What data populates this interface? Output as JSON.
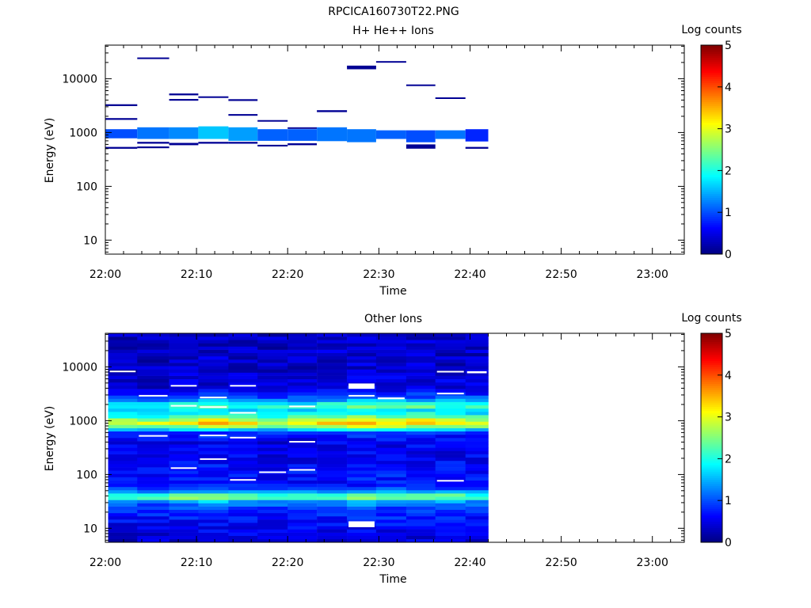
{
  "figure_title": "RPCICA160730T22.PNG",
  "chart_data": [
    {
      "type": "heatmap",
      "title": "H+ He++ Ions",
      "xlabel": "Time",
      "ylabel": "Energy (eV)",
      "colorbar_label": "Log counts",
      "x_tick_labels": [
        "22:00",
        "22:10",
        "22:20",
        "22:30",
        "22:40",
        "22:50",
        "23:00"
      ],
      "y_tick_labels": [
        "10",
        "100",
        "1000",
        "10000"
      ],
      "colorbar_tick_labels": [
        "0",
        "1",
        "2",
        "3",
        "4",
        "5"
      ],
      "xlim_minutes": [
        0,
        63.5
      ],
      "ylim_eV": [
        5.5,
        42000
      ],
      "y_scale": "log",
      "colorbar_range": [
        0,
        5
      ],
      "data_end_minutes": 42,
      "columns_minutes": [
        0,
        3.5,
        7,
        10.2,
        13.5,
        16.7,
        20,
        23.2,
        26.5,
        29.7,
        33,
        36.2,
        39.5,
        42
      ],
      "cells": [
        {
          "col": 0,
          "e0": 780,
          "e1": 1150,
          "z": 1.0
        },
        {
          "col": 0,
          "e0": 3100,
          "e1": 3350,
          "z": 0.1
        },
        {
          "col": 0,
          "e0": 1720,
          "e1": 1850,
          "z": 0.1
        },
        {
          "col": 0,
          "e0": 500,
          "e1": 540,
          "z": 0.1
        },
        {
          "col": 1,
          "e0": 760,
          "e1": 1250,
          "z": 1.2
        },
        {
          "col": 1,
          "e0": 23500,
          "e1": 24800,
          "z": 0.1
        },
        {
          "col": 1,
          "e0": 620,
          "e1": 670,
          "z": 0.1
        },
        {
          "col": 1,
          "e0": 510,
          "e1": 550,
          "z": 0.1
        },
        {
          "col": 2,
          "e0": 760,
          "e1": 1250,
          "z": 1.3
        },
        {
          "col": 2,
          "e0": 4900,
          "e1": 5300,
          "z": 0.1
        },
        {
          "col": 2,
          "e0": 3900,
          "e1": 4200,
          "z": 0.1
        },
        {
          "col": 2,
          "e0": 580,
          "e1": 640,
          "z": 0.1
        },
        {
          "col": 3,
          "e0": 760,
          "e1": 1300,
          "z": 1.6
        },
        {
          "col": 3,
          "e0": 4450,
          "e1": 4700,
          "z": 0.1
        },
        {
          "col": 3,
          "e0": 620,
          "e1": 670,
          "z": 0.1
        },
        {
          "col": 4,
          "e0": 700,
          "e1": 1250,
          "z": 1.4
        },
        {
          "col": 4,
          "e0": 3850,
          "e1": 4150,
          "z": 0.1
        },
        {
          "col": 4,
          "e0": 2050,
          "e1": 2200,
          "z": 0.1
        },
        {
          "col": 4,
          "e0": 620,
          "e1": 670,
          "z": 0.1
        },
        {
          "col": 5,
          "e0": 700,
          "e1": 1150,
          "z": 1.1
        },
        {
          "col": 5,
          "e0": 1600,
          "e1": 1700,
          "z": 0.1
        },
        {
          "col": 5,
          "e0": 550,
          "e1": 590,
          "z": 0.1
        },
        {
          "col": 6,
          "e0": 700,
          "e1": 1150,
          "z": 1.1
        },
        {
          "col": 6,
          "e0": 1180,
          "e1": 1250,
          "z": 0.1
        },
        {
          "col": 6,
          "e0": 580,
          "e1": 630,
          "z": 0.1
        },
        {
          "col": 7,
          "e0": 690,
          "e1": 1250,
          "z": 1.2
        },
        {
          "col": 7,
          "e0": 2400,
          "e1": 2600,
          "z": 0.1
        },
        {
          "col": 8,
          "e0": 660,
          "e1": 1150,
          "z": 1.2
        },
        {
          "col": 8,
          "e0": 15000,
          "e1": 17500,
          "z": 0.1
        },
        {
          "col": 9,
          "e0": 760,
          "e1": 1100,
          "z": 1.1
        },
        {
          "col": 9,
          "e0": 19800,
          "e1": 21200,
          "z": 0.1
        },
        {
          "col": 10,
          "e0": 660,
          "e1": 1100,
          "z": 1.0
        },
        {
          "col": 10,
          "e0": 7300,
          "e1": 7800,
          "z": 0.1
        },
        {
          "col": 10,
          "e0": 500,
          "e1": 600,
          "z": 0.1
        },
        {
          "col": 11,
          "e0": 760,
          "e1": 1100,
          "z": 1.2
        },
        {
          "col": 11,
          "e0": 4200,
          "e1": 4500,
          "z": 0.1
        },
        {
          "col": 12,
          "e0": 680,
          "e1": 1150,
          "z": 0.8
        },
        {
          "col": 12,
          "e0": 500,
          "e1": 540,
          "z": 0.1
        }
      ]
    },
    {
      "type": "heatmap",
      "title": "Other Ions",
      "xlabel": "Time",
      "ylabel": "Energy (eV)",
      "colorbar_label": "Log counts",
      "x_tick_labels": [
        "22:00",
        "22:10",
        "22:20",
        "22:30",
        "22:40",
        "22:50",
        "23:00"
      ],
      "y_tick_labels": [
        "10",
        "100",
        "1000",
        "10000"
      ],
      "colorbar_tick_labels": [
        "0",
        "1",
        "2",
        "3",
        "4",
        "5"
      ],
      "xlim_minutes": [
        0,
        63.5
      ],
      "ylim_eV": [
        5.5,
        42000
      ],
      "y_scale": "log",
      "colorbar_range": [
        0,
        5
      ],
      "data_start_minutes": 0.3,
      "data_end_minutes": 42,
      "columns_minutes": [
        0.3,
        3.5,
        7,
        10.2,
        13.5,
        16.7,
        20,
        23.2,
        26.5,
        29.7,
        33,
        36.2,
        39.5,
        42
      ],
      "n_energy_bins": 64,
      "profile_log_eV_to_z": [
        [
          0.74,
          0.4
        ],
        [
          1.1,
          0.6
        ],
        [
          1.4,
          0.9
        ],
        [
          1.5,
          1.4
        ],
        [
          1.56,
          2.3
        ],
        [
          1.62,
          2.1
        ],
        [
          1.7,
          1.2
        ],
        [
          1.78,
          0.6
        ],
        [
          2.0,
          0.7
        ],
        [
          2.3,
          0.55
        ],
        [
          2.6,
          0.5
        ],
        [
          2.78,
          0.8
        ],
        [
          2.88,
          2.3
        ],
        [
          2.95,
          3.1
        ],
        [
          3.02,
          2.7
        ],
        [
          3.1,
          1.9
        ],
        [
          3.2,
          1.6
        ],
        [
          3.28,
          2.2
        ],
        [
          3.35,
          1.5
        ],
        [
          3.45,
          0.9
        ],
        [
          3.6,
          0.45
        ],
        [
          4.0,
          0.35
        ],
        [
          4.63,
          0.35
        ]
      ],
      "column_gain": [
        0.95,
        0.95,
        1.05,
        1.1,
        1.05,
        0.95,
        1.0,
        1.05,
        1.15,
        1.1,
        1.1,
        1.05,
        1.0
      ],
      "empty_bins": [
        {
          "col": 1,
          "e0": 2800,
          "e1": 3000
        },
        {
          "col": 2,
          "e0": 1850,
          "e1": 1950
        },
        {
          "col": 3,
          "e0": 2600,
          "e1": 2800
        },
        {
          "col": 3,
          "e0": 1750,
          "e1": 1850
        },
        {
          "col": 4,
          "e0": 1350,
          "e1": 1450
        },
        {
          "col": 4,
          "e0": 4300,
          "e1": 4600
        },
        {
          "col": 2,
          "e0": 4300,
          "e1": 4600
        },
        {
          "col": 0,
          "e0": 8100,
          "e1": 8500
        },
        {
          "col": 6,
          "e0": 1800,
          "e1": 1900
        },
        {
          "col": 8,
          "e0": 2800,
          "e1": 3000
        },
        {
          "col": 8,
          "e0": 3900,
          "e1": 4900
        },
        {
          "col": 9,
          "e0": 2500,
          "e1": 2700
        },
        {
          "col": 11,
          "e0": 3100,
          "e1": 3300
        },
        {
          "col": 12,
          "e0": 7600,
          "e1": 8300
        },
        {
          "col": 11,
          "e0": 8000,
          "e1": 8400
        },
        {
          "col": 1,
          "e0": 510,
          "e1": 540
        },
        {
          "col": 3,
          "e0": 520,
          "e1": 550
        },
        {
          "col": 4,
          "e0": 470,
          "e1": 500
        },
        {
          "col": 6,
          "e0": 400,
          "e1": 420
        },
        {
          "col": 3,
          "e0": 190,
          "e1": 200
        },
        {
          "col": 2,
          "e0": 128,
          "e1": 136
        },
        {
          "col": 5,
          "e0": 108,
          "e1": 114
        },
        {
          "col": 6,
          "e0": 120,
          "e1": 126
        },
        {
          "col": 4,
          "e0": 78,
          "e1": 82
        },
        {
          "col": 11,
          "e0": 75,
          "e1": 79
        },
        {
          "col": 8,
          "e0": 10.5,
          "e1": 13.5
        }
      ]
    }
  ]
}
